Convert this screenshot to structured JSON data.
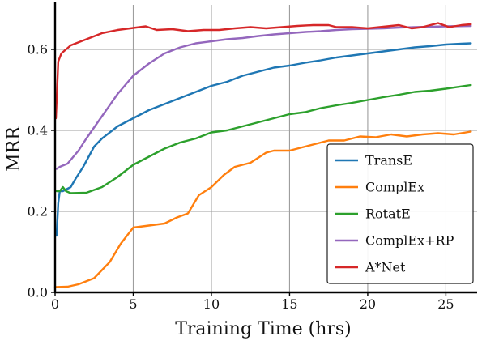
{
  "chart_data": {
    "type": "line",
    "xlabel": "Training Time (hrs)",
    "ylabel": "MRR",
    "xlim": [
      0,
      27
    ],
    "ylim": [
      0,
      0.71
    ],
    "xticks": [
      0,
      5,
      10,
      15,
      20,
      25
    ],
    "yticks": [
      0.0,
      0.2,
      0.4,
      0.6
    ],
    "grid": true,
    "legend_position": "lower-right",
    "series": [
      {
        "name": "TransE",
        "color": "#1f77b4",
        "points": [
          [
            0.1,
            0.14
          ],
          [
            0.2,
            0.22
          ],
          [
            0.3,
            0.25
          ],
          [
            0.5,
            0.25
          ],
          [
            1.0,
            0.26
          ],
          [
            1.3,
            0.28
          ],
          [
            1.8,
            0.31
          ],
          [
            2.5,
            0.36
          ],
          [
            3.0,
            0.38
          ],
          [
            4.0,
            0.41
          ],
          [
            5.0,
            0.43
          ],
          [
            6.0,
            0.45
          ],
          [
            7.0,
            0.465
          ],
          [
            8.0,
            0.48
          ],
          [
            9.0,
            0.495
          ],
          [
            10.0,
            0.51
          ],
          [
            11.0,
            0.52
          ],
          [
            12.0,
            0.535
          ],
          [
            13.0,
            0.545
          ],
          [
            14.0,
            0.555
          ],
          [
            15.0,
            0.56
          ],
          [
            16.0,
            0.567
          ],
          [
            17.0,
            0.573
          ],
          [
            18.0,
            0.58
          ],
          [
            19.0,
            0.585
          ],
          [
            20.0,
            0.59
          ],
          [
            21.0,
            0.595
          ],
          [
            22.0,
            0.6
          ],
          [
            23.0,
            0.605
          ],
          [
            24.0,
            0.608
          ],
          [
            25.0,
            0.612
          ],
          [
            26.0,
            0.614
          ],
          [
            26.6,
            0.615
          ]
        ]
      },
      {
        "name": "ComplEx",
        "color": "#ff7f0e",
        "points": [
          [
            0.0,
            0.013
          ],
          [
            0.8,
            0.014
          ],
          [
            1.5,
            0.02
          ],
          [
            2.5,
            0.035
          ],
          [
            3.5,
            0.075
          ],
          [
            4.2,
            0.12
          ],
          [
            5.0,
            0.16
          ],
          [
            6.0,
            0.165
          ],
          [
            7.0,
            0.17
          ],
          [
            7.8,
            0.185
          ],
          [
            8.5,
            0.195
          ],
          [
            9.2,
            0.24
          ],
          [
            10.0,
            0.26
          ],
          [
            10.8,
            0.29
          ],
          [
            11.5,
            0.31
          ],
          [
            12.5,
            0.32
          ],
          [
            13.5,
            0.345
          ],
          [
            14.0,
            0.35
          ],
          [
            15.0,
            0.35
          ],
          [
            16.0,
            0.36
          ],
          [
            16.5,
            0.365
          ],
          [
            17.5,
            0.375
          ],
          [
            18.5,
            0.375
          ],
          [
            19.5,
            0.385
          ],
          [
            20.5,
            0.383
          ],
          [
            21.5,
            0.39
          ],
          [
            22.5,
            0.385
          ],
          [
            23.5,
            0.39
          ],
          [
            24.5,
            0.393
          ],
          [
            25.5,
            0.39
          ],
          [
            26.6,
            0.397
          ]
        ]
      },
      {
        "name": "RotatE",
        "color": "#2ca02c",
        "points": [
          [
            0.1,
            0.25
          ],
          [
            0.3,
            0.25
          ],
          [
            0.5,
            0.26
          ],
          [
            0.7,
            0.25
          ],
          [
            1.0,
            0.245
          ],
          [
            2.0,
            0.246
          ],
          [
            3.0,
            0.26
          ],
          [
            4.0,
            0.285
          ],
          [
            5.0,
            0.315
          ],
          [
            6.0,
            0.335
          ],
          [
            7.0,
            0.355
          ],
          [
            8.0,
            0.37
          ],
          [
            9.0,
            0.38
          ],
          [
            10.0,
            0.395
          ],
          [
            11.0,
            0.4
          ],
          [
            12.0,
            0.41
          ],
          [
            13.0,
            0.42
          ],
          [
            14.0,
            0.43
          ],
          [
            15.0,
            0.44
          ],
          [
            16.0,
            0.445
          ],
          [
            17.0,
            0.455
          ],
          [
            18.0,
            0.462
          ],
          [
            19.0,
            0.468
          ],
          [
            20.0,
            0.475
          ],
          [
            21.0,
            0.482
          ],
          [
            22.0,
            0.488
          ],
          [
            23.0,
            0.495
          ],
          [
            24.0,
            0.498
          ],
          [
            25.0,
            0.503
          ],
          [
            26.6,
            0.512
          ]
        ]
      },
      {
        "name": "ComplEx+RP",
        "color": "#9467bd",
        "points": [
          [
            0.1,
            0.305
          ],
          [
            0.3,
            0.31
          ],
          [
            0.8,
            0.318
          ],
          [
            1.5,
            0.35
          ],
          [
            2.0,
            0.38
          ],
          [
            3.0,
            0.435
          ],
          [
            4.0,
            0.49
          ],
          [
            5.0,
            0.535
          ],
          [
            6.0,
            0.565
          ],
          [
            7.0,
            0.59
          ],
          [
            8.0,
            0.605
          ],
          [
            9.0,
            0.615
          ],
          [
            10.0,
            0.62
          ],
          [
            11.0,
            0.625
          ],
          [
            12.0,
            0.628
          ],
          [
            13.0,
            0.633
          ],
          [
            14.0,
            0.637
          ],
          [
            15.0,
            0.64
          ],
          [
            16.0,
            0.643
          ],
          [
            17.0,
            0.645
          ],
          [
            18.0,
            0.648
          ],
          [
            19.0,
            0.65
          ],
          [
            20.0,
            0.651
          ],
          [
            21.0,
            0.652
          ],
          [
            22.0,
            0.654
          ],
          [
            23.0,
            0.655
          ],
          [
            24.0,
            0.656
          ],
          [
            25.0,
            0.657
          ],
          [
            26.6,
            0.658
          ]
        ]
      },
      {
        "name": "A*Net",
        "color": "#d62728",
        "points": [
          [
            0.05,
            0.43
          ],
          [
            0.2,
            0.57
          ],
          [
            0.4,
            0.59
          ],
          [
            0.7,
            0.6
          ],
          [
            1.0,
            0.61
          ],
          [
            2.0,
            0.625
          ],
          [
            3.0,
            0.64
          ],
          [
            4.0,
            0.648
          ],
          [
            5.0,
            0.653
          ],
          [
            5.8,
            0.657
          ],
          [
            6.5,
            0.648
          ],
          [
            7.5,
            0.65
          ],
          [
            8.5,
            0.645
          ],
          [
            9.5,
            0.648
          ],
          [
            10.5,
            0.648
          ],
          [
            11.5,
            0.652
          ],
          [
            12.5,
            0.655
          ],
          [
            13.5,
            0.652
          ],
          [
            14.5,
            0.655
          ],
          [
            15.5,
            0.658
          ],
          [
            16.5,
            0.66
          ],
          [
            17.5,
            0.66
          ],
          [
            18.0,
            0.655
          ],
          [
            19.0,
            0.655
          ],
          [
            20.0,
            0.652
          ],
          [
            21.0,
            0.656
          ],
          [
            22.0,
            0.66
          ],
          [
            22.8,
            0.652
          ],
          [
            23.5,
            0.655
          ],
          [
            24.5,
            0.665
          ],
          [
            25.2,
            0.655
          ],
          [
            26.0,
            0.66
          ],
          [
            26.6,
            0.662
          ]
        ]
      }
    ]
  }
}
